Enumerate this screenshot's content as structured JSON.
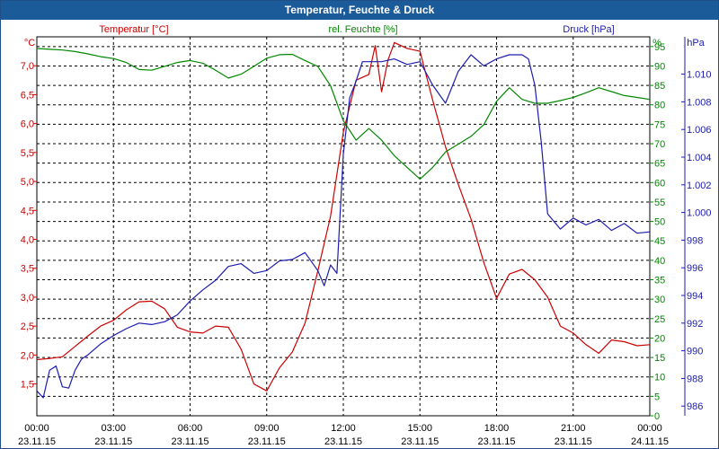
{
  "chart_data": {
    "type": "line",
    "title": "Temperatur, Feuchte & Druck",
    "grid": true,
    "x_ticks": [
      {
        "time": "00:00",
        "date": "23.11.15"
      },
      {
        "time": "03:00",
        "date": "23.11.15"
      },
      {
        "time": "06:00",
        "date": "23.11.15"
      },
      {
        "time": "09:00",
        "date": "23.11.15"
      },
      {
        "time": "12:00",
        "date": "23.11.15"
      },
      {
        "time": "15:00",
        "date": "23.11.15"
      },
      {
        "time": "18:00",
        "date": "23.11.15"
      },
      {
        "time": "21:00",
        "date": "23.11.15"
      },
      {
        "time": "00:00",
        "date": "24.11.15"
      }
    ],
    "axes": {
      "temperature": {
        "label": "Temperatur [°C]",
        "unit": "°C",
        "ylim": [
          0.95,
          7.5
        ],
        "ticks": [
          1.5,
          2.0,
          2.5,
          3.0,
          3.5,
          4.0,
          4.5,
          5.0,
          5.5,
          6.0,
          6.5,
          7.0
        ],
        "tick_labels": [
          "1,5",
          "2,0",
          "2,5",
          "3,0",
          "3,5",
          "4,0",
          "4,5",
          "5,0",
          "5,5",
          "6,0",
          "6,5",
          "7,0"
        ],
        "color": "#cc0000"
      },
      "humidity": {
        "label": "rel. Feuchte [%]",
        "unit": "%",
        "ylim": [
          0,
          97.5
        ],
        "ticks": [
          0,
          5,
          10,
          15,
          20,
          25,
          30,
          35,
          40,
          45,
          50,
          55,
          60,
          65,
          70,
          75,
          80,
          85,
          90,
          95
        ],
        "color": "#008800"
      },
      "pressure": {
        "label": "Druck [hPa]",
        "unit": "hPa",
        "ylim": [
          985.3,
          1012.7
        ],
        "ticks": [
          986,
          988,
          990,
          992,
          994,
          996,
          998,
          1000,
          1002,
          1004,
          1006,
          1008,
          1010
        ],
        "tick_labels": [
          "986",
          "988",
          "990",
          "992",
          "994",
          "996",
          "998",
          "1.000",
          "1.002",
          "1.004",
          "1.006",
          "1.008",
          "1.010"
        ],
        "color": "#1c1cb0"
      }
    },
    "series": [
      {
        "name": "Temperatur [°C]",
        "axis": "temperature",
        "x_hours": [
          0,
          0.5,
          1,
          1.5,
          2,
          2.5,
          3,
          3.5,
          4,
          4.5,
          5,
          5.5,
          6,
          6.5,
          7,
          7.5,
          8,
          8.5,
          9,
          9.5,
          10,
          10.5,
          11,
          11.5,
          12,
          12.5,
          13,
          13.25,
          13.5,
          13.75,
          14,
          14.5,
          15,
          15.5,
          16,
          16.5,
          17,
          17.5,
          18,
          18.5,
          19,
          19.5,
          20,
          20.5,
          21,
          21.5,
          22,
          22.5,
          23,
          23.5,
          24
        ],
        "values": [
          1.92,
          1.94,
          1.97,
          2.15,
          2.33,
          2.5,
          2.6,
          2.78,
          2.92,
          2.93,
          2.8,
          2.48,
          2.4,
          2.38,
          2.5,
          2.48,
          2.1,
          1.5,
          1.38,
          1.78,
          2.05,
          2.55,
          3.45,
          4.4,
          5.85,
          6.75,
          6.85,
          7.35,
          6.55,
          7.1,
          7.4,
          7.3,
          7.25,
          6.4,
          5.6,
          4.95,
          4.35,
          3.6,
          2.98,
          3.4,
          3.48,
          3.3,
          3.0,
          2.5,
          2.38,
          2.18,
          2.03,
          2.26,
          2.23,
          2.16,
          2.18
        ]
      },
      {
        "name": "rel. Feuchte [%]",
        "axis": "humidity",
        "x_hours": [
          0,
          0.5,
          1,
          1.5,
          2,
          2.5,
          3,
          3.5,
          4,
          4.5,
          5,
          5.5,
          6,
          6.5,
          7,
          7.5,
          8,
          8.5,
          9,
          9.5,
          10,
          10.5,
          11,
          11.5,
          12,
          12.5,
          13,
          13.5,
          14,
          14.5,
          15,
          15.5,
          16,
          16.5,
          17,
          17.5,
          18,
          18.5,
          19,
          19.5,
          20,
          20.5,
          21,
          21.5,
          22,
          22.5,
          23,
          23.5,
          24
        ],
        "values": [
          94.5,
          94.3,
          94.1,
          93.7,
          93.1,
          92.4,
          91.9,
          90.9,
          89.1,
          88.9,
          89.9,
          90.9,
          91.4,
          90.7,
          88.9,
          86.9,
          87.9,
          89.9,
          92.0,
          92.9,
          93.0,
          91.4,
          89.9,
          84.9,
          75.9,
          70.9,
          73.9,
          70.9,
          66.9,
          63.9,
          60.9,
          63.9,
          67.9,
          69.9,
          71.9,
          74.9,
          80.9,
          84.4,
          81.4,
          80.4,
          80.4,
          81.1,
          81.9,
          83.1,
          84.4,
          83.4,
          82.4,
          81.9,
          81.4
        ]
      },
      {
        "name": "Druck [hPa]",
        "axis": "pressure",
        "x_hours": [
          0,
          0.25,
          0.5,
          0.75,
          1,
          1.25,
          1.5,
          1.75,
          2,
          2.5,
          3,
          3.5,
          4,
          4.5,
          5,
          5.5,
          6,
          6.5,
          7,
          7.5,
          8,
          8.5,
          9,
          9.5,
          10,
          10.5,
          11,
          11.25,
          11.5,
          11.75,
          12,
          12.25,
          12.5,
          12.75,
          13,
          13.5,
          14,
          14.5,
          15,
          15.5,
          16,
          16.5,
          17,
          17.5,
          18,
          18.5,
          19,
          19.25,
          19.5,
          19.75,
          20,
          20.5,
          21,
          21.5,
          22,
          22.5,
          23,
          23.5,
          24
        ],
        "values": [
          987.1,
          986.6,
          988.6,
          988.9,
          987.4,
          987.3,
          988.6,
          989.4,
          989.7,
          990.5,
          991.1,
          991.6,
          992.0,
          991.9,
          992.1,
          992.6,
          993.6,
          994.4,
          995.1,
          996.1,
          996.3,
          995.6,
          995.8,
          996.5,
          996.6,
          997.1,
          995.8,
          994.7,
          996.2,
          995.6,
          1004.2,
          1008.3,
          1009.5,
          1010.9,
          1010.9,
          1010.9,
          1011.1,
          1010.7,
          1010.9,
          1009.2,
          1007.9,
          1010.2,
          1011.4,
          1010.6,
          1011.1,
          1011.4,
          1011.4,
          1011.1,
          1009.2,
          1005.1,
          999.9,
          998.8,
          999.6,
          999.1,
          999.5,
          998.7,
          999.2,
          998.5,
          998.6
        ]
      }
    ]
  }
}
